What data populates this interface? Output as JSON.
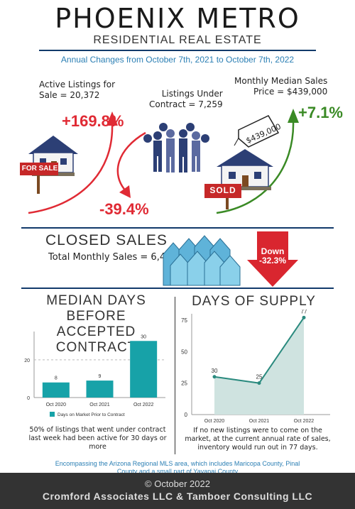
{
  "header": {
    "title": "PHOENIX METRO",
    "subtitle": "RESIDENTIAL REAL ESTATE",
    "period": "Annual Changes from October 7th, 2021 to October 7th, 2022"
  },
  "stats": {
    "active_label_1": "Active Listings for",
    "active_label_2": "Sale = 20,372",
    "active_change": "+169.8%",
    "for_sale_sign": "FOR SALE",
    "under_contract_label_1": "Listings Under",
    "under_contract_label_2": "Contract = 7,259",
    "under_contract_change": "-39.4%",
    "median_price_label_1": "Monthly Median Sales",
    "median_price_label_2": "Price = $439,000",
    "price_tag": "$439,000",
    "median_price_change": "+7.1%",
    "sold_sign": "SOLD"
  },
  "closed_sales": {
    "heading": "CLOSED SALES",
    "total": "Total Monthly Sales = 6,485",
    "arrow_label_1": "Down",
    "arrow_label_2": "-32.3%"
  },
  "median_days": {
    "heading_1": "MEDIAN DAYS BEFORE",
    "heading_2": "ACCEPTED CONTRACT",
    "note": "50% of listings that went under contract last week had been active for 30 days or more"
  },
  "supply": {
    "heading": "DAYS OF SUPPLY",
    "note": "If no new listings were to come on the market, at the current annual rate of sales, inventory would run out in 77 days."
  },
  "chart_data": [
    {
      "type": "bar",
      "categories": [
        "Oct 2020",
        "Oct 2021",
        "Oct 2022"
      ],
      "series": [
        {
          "name": "Days on Market Prior to Contract",
          "values": [
            8,
            9,
            30
          ]
        }
      ],
      "yticks": [
        "0",
        "20"
      ],
      "ylim": [
        0,
        35
      ],
      "legend": "bottom",
      "color": "#17a2a8"
    },
    {
      "type": "area",
      "categories": [
        "Oct 2020",
        "Oct 2021",
        "Oct 2022"
      ],
      "values": [
        30,
        25,
        77
      ],
      "yticks": [
        "0",
        "25",
        "50",
        "75"
      ],
      "ylim": [
        0,
        80
      ],
      "color": "#2a8a7e",
      "fill": "#cfe3e0"
    }
  ],
  "footer": {
    "area_note_1": "Encompassing the Arizona Regional MLS area, which includes Maricopa County, Pinal",
    "area_note_2": "County and a small part of Yavapai County",
    "copyright": "© October 2022",
    "company": "Cromford Associates LLC & Tamboer Consulting LLC"
  }
}
